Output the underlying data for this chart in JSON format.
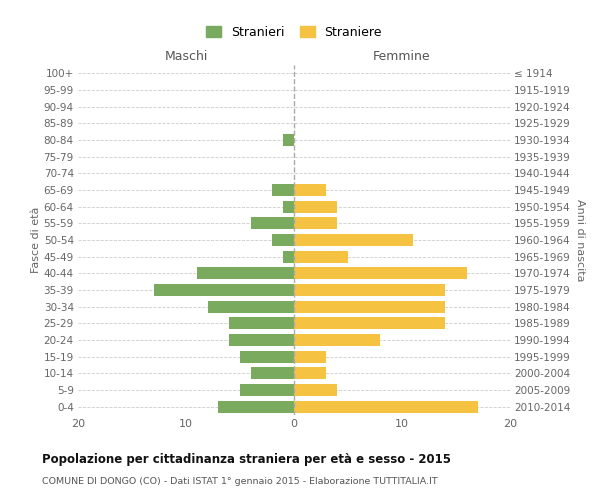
{
  "age_groups": [
    "0-4",
    "5-9",
    "10-14",
    "15-19",
    "20-24",
    "25-29",
    "30-34",
    "35-39",
    "40-44",
    "45-49",
    "50-54",
    "55-59",
    "60-64",
    "65-69",
    "70-74",
    "75-79",
    "80-84",
    "85-89",
    "90-94",
    "95-99",
    "100+"
  ],
  "birth_years": [
    "2010-2014",
    "2005-2009",
    "2000-2004",
    "1995-1999",
    "1990-1994",
    "1985-1989",
    "1980-1984",
    "1975-1979",
    "1970-1974",
    "1965-1969",
    "1960-1964",
    "1955-1959",
    "1950-1954",
    "1945-1949",
    "1940-1944",
    "1935-1939",
    "1930-1934",
    "1925-1929",
    "1920-1924",
    "1915-1919",
    "≤ 1914"
  ],
  "maschi": [
    7,
    5,
    4,
    5,
    6,
    6,
    8,
    13,
    9,
    1,
    2,
    4,
    1,
    2,
    0,
    0,
    1,
    0,
    0,
    0,
    0
  ],
  "femmine": [
    17,
    4,
    3,
    3,
    8,
    14,
    14,
    14,
    16,
    5,
    11,
    4,
    4,
    3,
    0,
    0,
    0,
    0,
    0,
    0,
    0
  ],
  "color_maschi": "#7aaa5d",
  "color_femmine": "#f5c242",
  "title": "Popolazione per cittadinanza straniera per età e sesso - 2015",
  "subtitle": "COMUNE DI DONGO (CO) - Dati ISTAT 1° gennaio 2015 - Elaborazione TUTTITALIA.IT",
  "label_maschi": "Maschi",
  "label_femmine": "Femmine",
  "ylabel_left": "Fasce di età",
  "ylabel_right": "Anni di nascita",
  "legend_maschi": "Stranieri",
  "legend_femmine": "Straniere",
  "xlim": 20,
  "background_color": "#ffffff",
  "grid_color": "#cccccc"
}
